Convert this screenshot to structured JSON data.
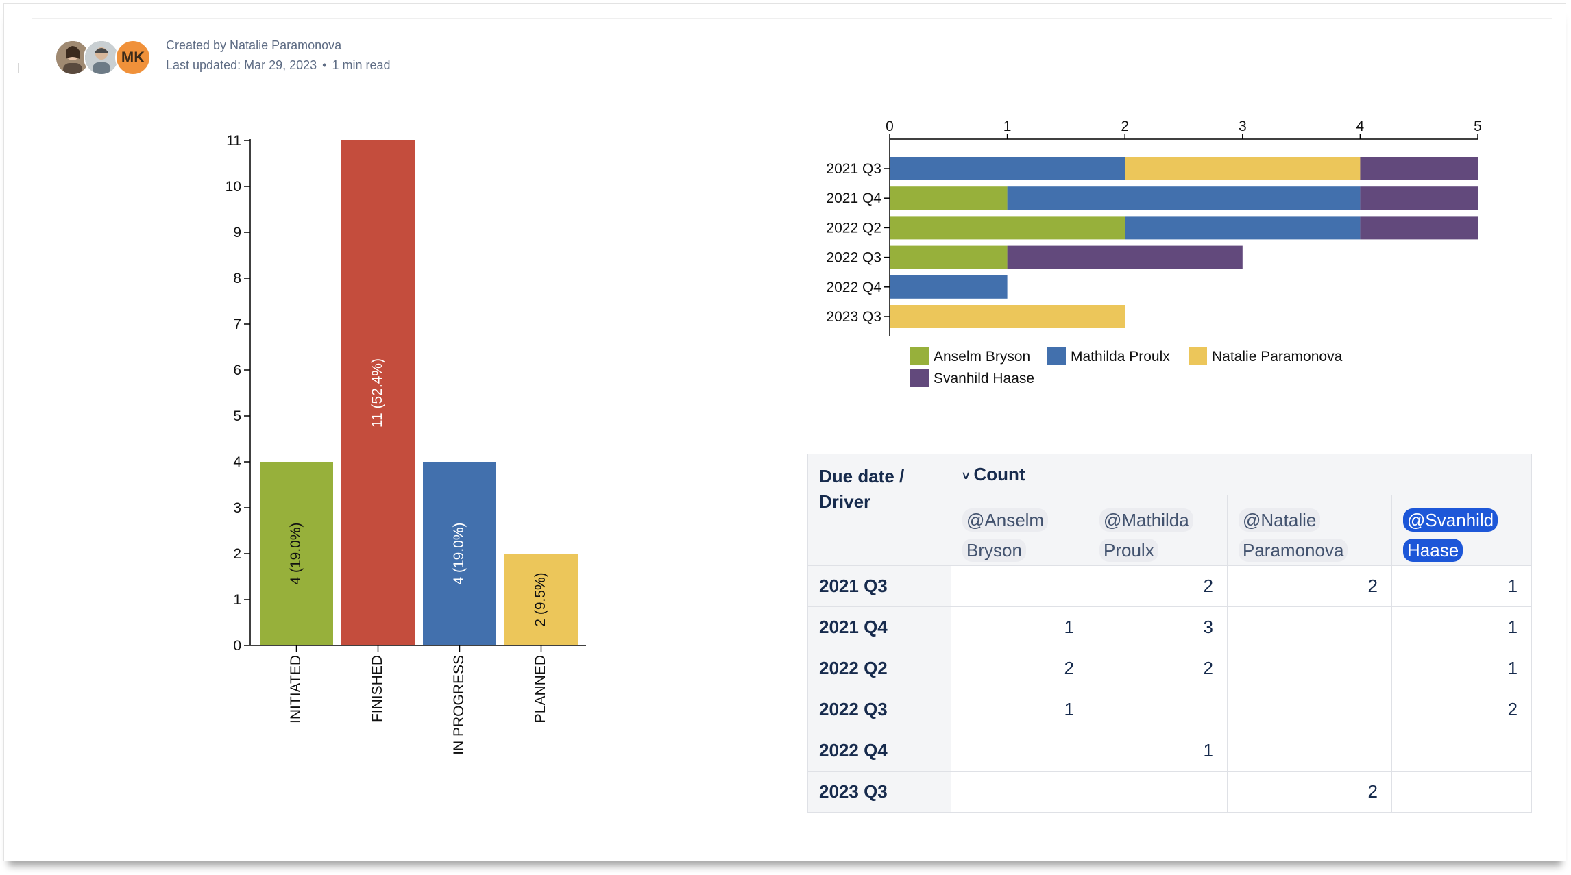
{
  "header": {
    "created_by": "Created by Natalie Paramonova",
    "last_updated": "Last updated: Mar 29, 2023",
    "dot": "•",
    "read_time": "1 min read",
    "avatar_initials": "MK"
  },
  "chart_data": [
    {
      "type": "bar",
      "categories": [
        "INITIATED",
        "FINISHED",
        "IN PROGRESS",
        "PLANNED"
      ],
      "values": [
        4,
        11,
        4,
        2
      ],
      "data_labels": [
        "4 (19.0%)",
        "11 (52.4%)",
        "4 (19.0%)",
        "2 (9.5%)"
      ],
      "colors": [
        "#97b03b",
        "#c44d3d",
        "#4270ad",
        "#ecc65a"
      ],
      "ylim": [
        0,
        11
      ],
      "yticks": [
        0,
        1,
        2,
        3,
        4,
        5,
        6,
        7,
        8,
        9,
        10,
        11
      ],
      "grid": false,
      "title": "",
      "xlabel": "",
      "ylabel": ""
    },
    {
      "type": "bar",
      "orientation": "horizontal",
      "stacked": true,
      "categories": [
        "2021 Q3",
        "2021 Q4",
        "2022 Q2",
        "2022 Q3",
        "2022 Q4",
        "2023 Q3"
      ],
      "series": [
        {
          "name": "Anselm Bryson",
          "color": "#97b03b",
          "values": [
            0,
            1,
            2,
            1,
            0,
            0
          ]
        },
        {
          "name": "Mathilda Proulx",
          "color": "#4270ad",
          "values": [
            2,
            3,
            2,
            0,
            1,
            0
          ]
        },
        {
          "name": "Natalie Paramonova",
          "color": "#ecc65a",
          "values": [
            2,
            0,
            0,
            0,
            0,
            2
          ]
        },
        {
          "name": "Svanhild Haase",
          "color": "#62497c",
          "values": [
            1,
            1,
            1,
            2,
            0,
            0
          ]
        }
      ],
      "xlim": [
        0,
        5
      ],
      "xticks": [
        0,
        1,
        2,
        3,
        4,
        5
      ],
      "legend_position": "bottom",
      "grid": false,
      "title": "",
      "xlabel": "",
      "ylabel": ""
    }
  ],
  "table": {
    "corner_header": "Due date / Driver",
    "count_header": "Count",
    "chevron": "˅",
    "columns": [
      "@Anselm Bryson",
      "@Mathilda Proulx",
      "@Natalie Paramonova",
      "@Svanhild Haase"
    ],
    "rows": [
      {
        "label": "2021 Q3",
        "cells": [
          "",
          "2",
          "2",
          "1"
        ]
      },
      {
        "label": "2021 Q4",
        "cells": [
          "1",
          "3",
          "",
          "1"
        ]
      },
      {
        "label": "2022 Q2",
        "cells": [
          "2",
          "2",
          "",
          "1"
        ]
      },
      {
        "label": "2022 Q3",
        "cells": [
          "1",
          "",
          "",
          "2"
        ]
      },
      {
        "label": "2022 Q4",
        "cells": [
          "",
          "1",
          "",
          ""
        ]
      },
      {
        "label": "2023 Q3",
        "cells": [
          "",
          "",
          "2",
          ""
        ]
      }
    ]
  }
}
